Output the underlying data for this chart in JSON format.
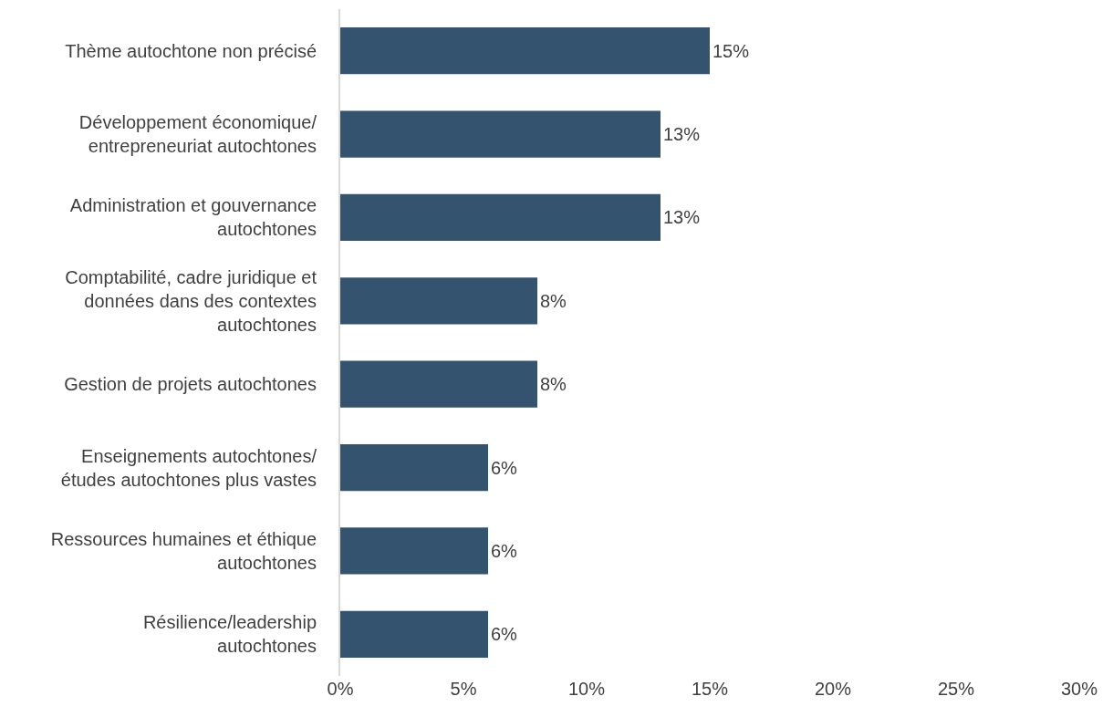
{
  "chart_data": {
    "type": "bar",
    "orientation": "horizontal",
    "categories": [
      "Thème autochtone non précisé",
      "Développement économique/\nentrepreneuriat autochtones",
      "Administration et gouvernance\nautochtones",
      "Comptabilité, cadre juridique et\ndonnées dans des contextes\nautochtones",
      "Gestion de projets autochtones",
      "Enseignements autochtones/\nétudes autochtones plus vastes",
      "Ressources humaines et éthique\nautochtones",
      "Résilience/leadership\nautochtones"
    ],
    "values": [
      15,
      13,
      13,
      8,
      8,
      6,
      6,
      6
    ],
    "value_labels": [
      "15%",
      "13%",
      "13%",
      "8%",
      "8%",
      "6%",
      "6%",
      "6%"
    ],
    "color": "#34536f",
    "xlim": [
      0,
      30
    ],
    "xticks": [
      {
        "value": 0,
        "label": "0%"
      },
      {
        "value": 5,
        "label": "5%"
      },
      {
        "value": 10,
        "label": "10%"
      },
      {
        "value": 15,
        "label": "15%"
      },
      {
        "value": 20,
        "label": "20%"
      },
      {
        "value": 25,
        "label": "25%"
      },
      {
        "value": 30,
        "label": "30%"
      }
    ],
    "grid": false,
    "legend": false
  }
}
